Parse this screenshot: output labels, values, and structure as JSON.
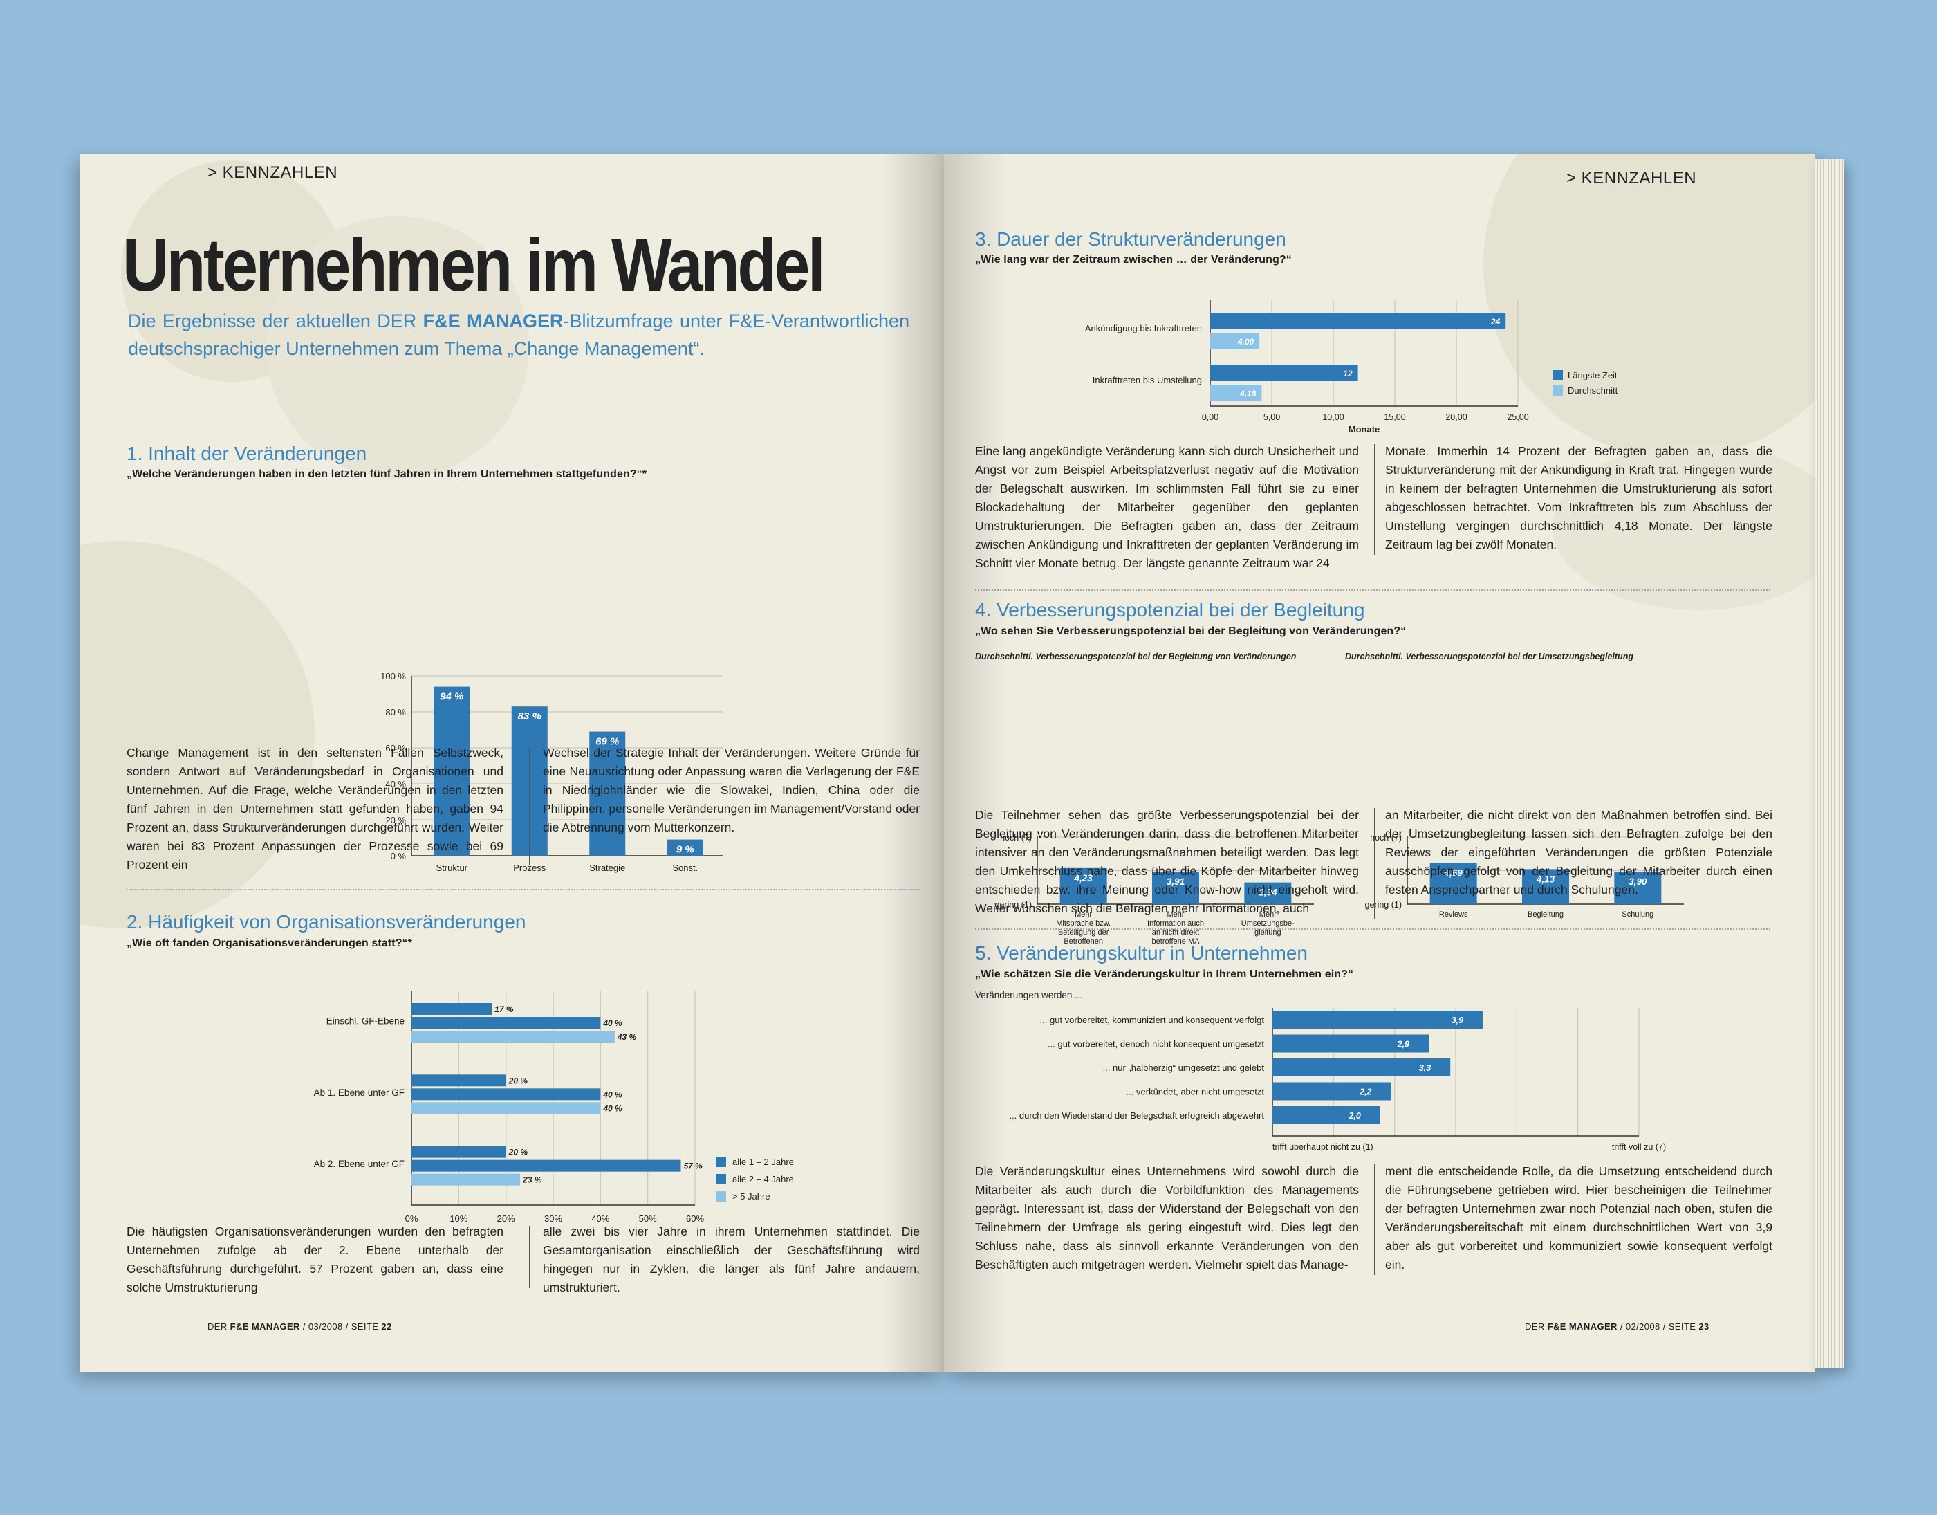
{
  "left_page": {
    "section_label": "> KENNZAHLEN",
    "title": "Unternehmen im Wandel",
    "subtitle_pre": "Die Ergebnisse der aktuellen DER ",
    "subtitle_brand": "F&E MANAGER",
    "subtitle_post": "-Blitzumfrage unter F&E-Verantwortlichen deutschsprachiger Unternehmen zum Thema „Change Management“.",
    "section1": {
      "title": "1. Inhalt der Veränderungen",
      "question": "„Welche Veränderungen haben in den letzten fünf Jahren in Ihrem Unternehmen stattgefunden?“*",
      "col1": "Change Management ist in den seltensten Fällen Selbstzweck, sondern Antwort auf Veränderungsbedarf in Organisationen und Unternehmen. Auf die Frage, welche Veränderungen in den letzten fünf Jahren in den Unternehmen statt gefunden haben, gaben 94 Prozent an, dass Strukturveränderungen durchgeführt wurden. Weiter waren bei 83 Prozent Anpassungen der Prozesse sowie bei 69 Prozent ein",
      "col2": "Wechsel der Strategie Inhalt der Veränderungen. Weitere Gründe für eine Neuausrichtung oder Anpassung waren die Verlagerung der F&E in Niedriglohnländer wie die Slowakei, Indien, China oder die Philippinen, personelle Veränderungen im Management/Vorstand oder die Abtrennung vom Mutterkonzern."
    },
    "section2": {
      "title": "2. Häufigkeit von Organisationsveränderungen",
      "question": "„Wie oft fanden Organisationsveränderungen statt?“*",
      "col1": "Die häufigsten Organisationsveränderungen wurden den befragten Unternehmen zufolge ab der 2. Ebene unterhalb der Geschäftsführung durchgeführt. 57 Prozent gaben an, dass eine solche Umstrukturierung",
      "col2": "alle zwei bis vier Jahre in ihrem Unternehmen stattfindet. Die Gesamtorganisation einschließlich der Geschäftsführung wird hingegen nur in Zyklen, die länger als fünf Jahre andauern, umstrukturiert."
    },
    "footer": {
      "pre": "DER ",
      "brand": "F&E MANAGER",
      "post": " / 03/2008 / SEITE ",
      "page": "22"
    }
  },
  "right_page": {
    "section_label": "> KENNZAHLEN",
    "section3": {
      "title": "3. Dauer der Strukturveränderungen",
      "question": "„Wie lang war der Zeitraum zwischen … der Veränderung?“",
      "col1": "Eine lang angekündigte Veränderung kann sich durch Unsicherheit und Angst vor zum Beispiel Arbeitsplatzverlust negativ auf die Motivation der Belegschaft auswirken. Im schlimmsten Fall führt sie zu einer Blockadehaltung der Mitarbeiter gegenüber den geplanten Umstrukturierungen. Die Befragten gaben an, dass der Zeitraum zwischen Ankündigung und Inkrafttreten der geplanten Veränderung im Schnitt vier Monate betrug. Der längste genannte Zeitraum war 24",
      "col2": "Monate. Immerhin 14 Prozent der Befragten gaben an, dass die Strukturveränderung mit der Ankündigung in Kraft trat. Hingegen wurde in keinem der befragten Unternehmen die Umstrukturierung als sofort abgeschlossen betrachtet. Vom Inkrafttreten bis zum Abschluss der Umstellung vergingen durchschnittlich 4,18 Monate. Der längste Zeitraum lag bei zwölf Monaten."
    },
    "section4": {
      "title": "4. Verbesserungspotenzial bei der Begleitung",
      "question": "„Wo sehen Sie Verbesserungspotenzial bei der Begleitung von Veränderungen?“",
      "col1": "Die Teilnehmer sehen das größte Verbesserungspotenzial bei der Begleitung von Veränderungen darin, dass die betroffenen Mitarbeiter intensiver an den Veränderungsmaßnahmen beteiligt werden. Das legt den Umkehrschluss nahe, dass über die Köpfe der Mitarbeiter hinweg entschieden bzw. ihre Meinung oder Know-how nicht eingeholt wird. Weiter wünschen sich die Befragten mehr Informationen, auch",
      "col2": "an Mitarbeiter, die nicht direkt von den Maßnahmen betroffen sind. Bei der Umsetzungbegleitung lassen sich den Befragten zufolge bei den Reviews der eingeführten Veränderungen die größten Potenziale ausschöpfen, gefolgt von der Begleitung der Mitarbeiter durch einen festen Ansprechpartner und durch Schulungen."
    },
    "section5": {
      "title": "5. Veränderungskultur in Unternehmen",
      "question": "„Wie schätzen Sie die Veränderungskultur in Ihrem Unternehmen ein?“",
      "col1": "Die Veränderungskultur eines Unternehmens wird sowohl durch die Mitarbeiter als auch durch die Vorbildfunktion des Managements geprägt. Interessant ist, dass der Widerstand der Belegschaft von den Teilnehmern der Umfrage als gering eingestuft wird. Dies legt den Schluss nahe, dass als sinnvoll erkannte Veränderungen von den Beschäftigten auch mitgetragen werden. Vielmehr spielt das Manage-",
      "col2": "ment die entscheidende Rolle, da die Umsetzung entscheidend durch die Führungsebene getrieben wird. Hier bescheinigen die Teilnehmer der befragten Unternehmen zwar noch Potenzial nach oben, stufen die Veränderungsbereitschaft mit einem durchschnittlichen Wert von 3,9 aber als gut vorbereitet und kommuniziert sowie konsequent verfolgt ein."
    },
    "footer": {
      "pre": "DER ",
      "brand": "F&E MANAGER",
      "post": " / 02/2008 / SEITE ",
      "page": "23"
    }
  },
  "colors": {
    "dark_bar": "#2e78b3",
    "light_bar": "#8ec3e8",
    "accent_text": "#3a86bd",
    "paper": "#efede0",
    "background": "#94bddc"
  },
  "chart_data": [
    {
      "id": "chart1",
      "type": "bar",
      "categories": [
        "Struktur",
        "Prozess",
        "Strategie",
        "Sonst."
      ],
      "values": [
        94,
        83,
        69,
        9
      ],
      "value_labels": [
        "94 %",
        "83 %",
        "69 %",
        "9 %"
      ],
      "ylim": [
        0,
        100
      ],
      "yticks": [
        "0 %",
        "20 %",
        "40 %",
        "60 %",
        "80 %",
        "100 %"
      ],
      "grid": true
    },
    {
      "id": "chart2",
      "type": "bar",
      "orientation": "horizontal",
      "categories": [
        "Einschl. GF-Ebene",
        "Ab 1. Ebene unter GF",
        "Ab 2. Ebene unter GF"
      ],
      "series": [
        {
          "name": "alle 1 – 2 Jahre",
          "values": [
            17,
            20,
            20
          ],
          "labels": [
            "17 %",
            "20 %",
            "20 %"
          ]
        },
        {
          "name": "alle 2 – 4 Jahre",
          "values": [
            40,
            40,
            57
          ],
          "labels": [
            "40 %",
            "40 %",
            "57 %"
          ]
        },
        {
          "name": "> 5 Jahre",
          "values": [
            43,
            40,
            23
          ],
          "labels": [
            "43 %",
            "40 %",
            "23 %"
          ]
        }
      ],
      "xlim": [
        0,
        60
      ],
      "xticks": [
        "0%",
        "10%",
        "20%",
        "30%",
        "40%",
        "50%",
        "60%"
      ],
      "legend": "right"
    },
    {
      "id": "chart3",
      "type": "bar",
      "orientation": "horizontal",
      "categories": [
        "Ankündigung bis Inkrafttreten",
        "Inkrafttreten bis Umstellung"
      ],
      "series": [
        {
          "name": "Längste Zeit",
          "values": [
            24,
            12
          ],
          "labels": [
            "24",
            "12"
          ]
        },
        {
          "name": "Durchschnitt",
          "values": [
            4.0,
            4.18
          ],
          "labels": [
            "4,00",
            "4,18"
          ]
        }
      ],
      "xlabel": "Monate",
      "xlim": [
        0,
        25
      ],
      "xticks": [
        "0,00",
        "5,00",
        "10,00",
        "15,00",
        "20,00",
        "25,00"
      ],
      "legend": "right"
    },
    {
      "id": "chart4a",
      "type": "bar",
      "title": "Durchschnittl. Verbesserungspotenzial bei der Begleitung von Veränderungen",
      "categories": [
        [
          "Mehr",
          "Mitsprache bzw.",
          "Beteiligung der",
          "Betroffenen"
        ],
        [
          "Mehr",
          "Information auch",
          "an nicht direkt",
          "betroffene MA"
        ],
        [
          "Mehr",
          "Umsetzungsbe-",
          "gleitung"
        ]
      ],
      "values": [
        4.23,
        3.91,
        2.94
      ],
      "value_labels": [
        "4,23",
        "3,91",
        "2,94"
      ],
      "ylim": [
        1,
        7
      ],
      "yticks": [
        "gering (1)",
        "hoch (7)"
      ]
    },
    {
      "id": "chart4b",
      "type": "bar",
      "title": "Durchschnittl. Verbesserungspotenzial bei der Umsetzungsbegleitung",
      "categories": [
        [
          "Reviews"
        ],
        [
          "Begleitung"
        ],
        [
          "Schulung"
        ]
      ],
      "values": [
        4.69,
        4.13,
        3.9
      ],
      "value_labels": [
        "4,69",
        "4,13",
        "3,90"
      ],
      "ylim": [
        1,
        7
      ],
      "yticks": [
        "gering (1)",
        "hoch (7)"
      ]
    },
    {
      "id": "chart5",
      "type": "bar",
      "orientation": "horizontal",
      "title": "Veränderungen werden ...",
      "categories": [
        "... gut vorbereitet, kommuniziert und konsequent verfolgt",
        "... gut vorbereitet, denoch nicht konsequent umgesetzt",
        "... nur „halbherzig“ umgesetzt und gelebt",
        "... verkündet, aber nicht umgesetzt",
        "... durch den Wiederstand der Belegschaft erfogreich abgewehrt"
      ],
      "values": [
        3.9,
        2.9,
        3.3,
        2.2,
        2.0
      ],
      "value_labels": [
        "3,9",
        "2,9",
        "3,3",
        "2,2",
        "2,0"
      ],
      "xlim": [
        1,
        7
      ],
      "xticks": [
        "trifft überhaupt nicht zu (1)",
        "trifft voll zu (7)"
      ]
    }
  ]
}
